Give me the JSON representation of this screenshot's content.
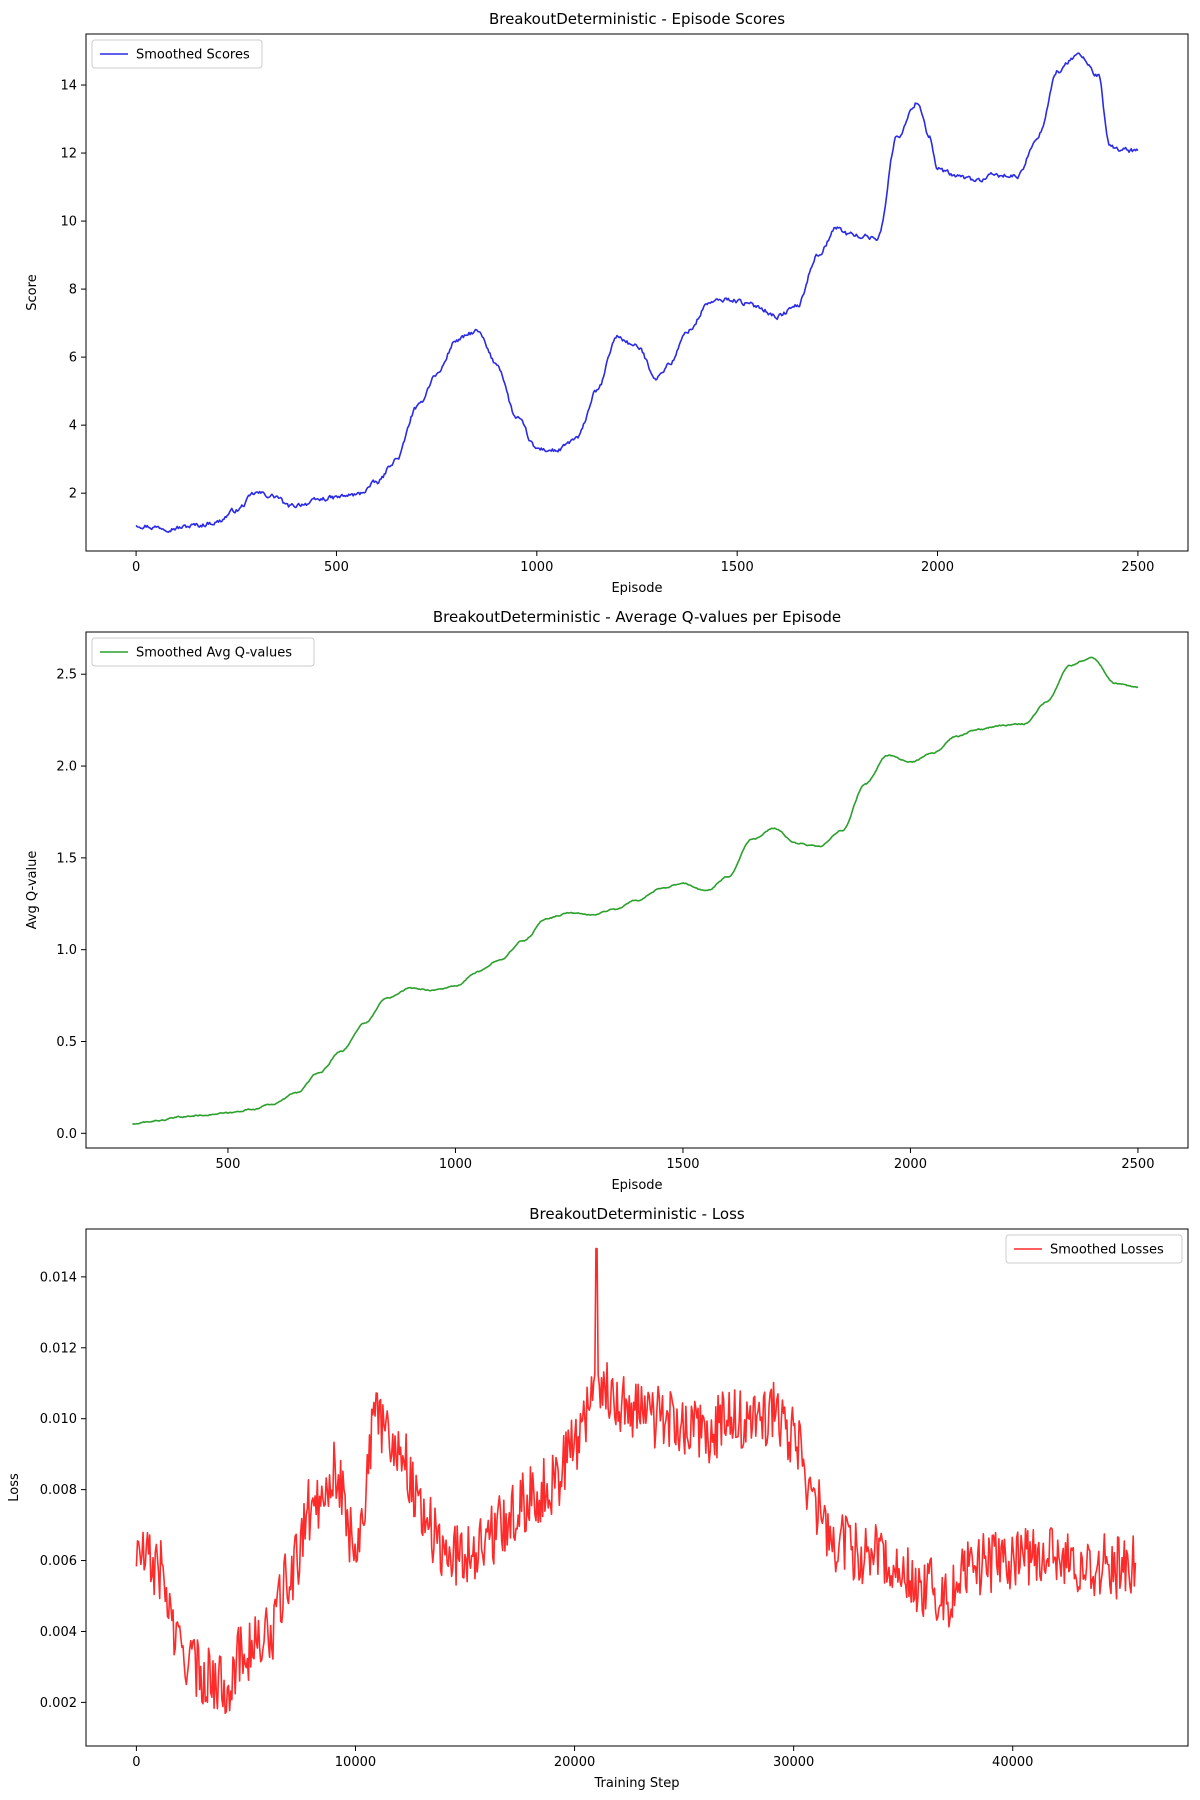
{
  "chart_data": [
    {
      "type": "line",
      "title": "BreakoutDeterministic - Episode Scores",
      "xlabel": "Episode",
      "ylabel": "Score",
      "xlim": [
        -125,
        2625
      ],
      "ylim": [
        0.3,
        15.5
      ],
      "xticks": [
        0,
        500,
        1000,
        1500,
        2000,
        2500
      ],
      "yticks": [
        2,
        4,
        6,
        8,
        10,
        12,
        14
      ],
      "grid": false,
      "legend_position": "top-left",
      "series": [
        {
          "name": "Smoothed Scores",
          "color": "#2b2be6",
          "noise": 0.12,
          "x": [
            0,
            50,
            100,
            150,
            200,
            250,
            300,
            350,
            380,
            420,
            480,
            550,
            600,
            650,
            700,
            750,
            800,
            850,
            900,
            950,
            1000,
            1050,
            1100,
            1150,
            1200,
            1250,
            1300,
            1330,
            1380,
            1430,
            1480,
            1550,
            1600,
            1650,
            1700,
            1750,
            1780,
            1850,
            1900,
            1950,
            1980,
            2000,
            2050,
            2100,
            2150,
            2200,
            2250,
            2300,
            2350,
            2400,
            2430,
            2460,
            2500
          ],
          "y": [
            1.08,
            1.0,
            0.98,
            1.05,
            1.15,
            1.5,
            2.0,
            1.9,
            1.6,
            1.7,
            1.85,
            1.95,
            2.3,
            3.0,
            4.5,
            5.5,
            6.5,
            6.75,
            5.8,
            4.2,
            3.3,
            3.25,
            3.6,
            5.0,
            6.6,
            6.3,
            5.4,
            5.8,
            6.8,
            7.6,
            7.7,
            7.5,
            7.2,
            7.5,
            9.0,
            9.8,
            9.6,
            9.5,
            12.5,
            13.5,
            12.5,
            11.5,
            11.3,
            11.2,
            11.35,
            11.3,
            12.5,
            14.4,
            14.9,
            14.3,
            12.2,
            12.1,
            12.05
          ]
        }
      ]
    },
    {
      "type": "line",
      "title": "BreakoutDeterministic - Average Q-values per Episode",
      "xlabel": "Episode",
      "ylabel": "Avg Q-value",
      "xlim": [
        188,
        2610
      ],
      "ylim": [
        -0.08,
        2.73
      ],
      "xticks": [
        500,
        1000,
        1500,
        2000,
        2500
      ],
      "yticks": [
        0.0,
        0.5,
        1.0,
        1.5,
        2.0,
        2.5
      ],
      "grid": false,
      "legend_position": "top-left",
      "series": [
        {
          "name": "Smoothed Avg Q-values",
          "color": "#2ca02c",
          "noise": 0.006,
          "x": [
            290,
            350,
            400,
            450,
            500,
            550,
            600,
            650,
            700,
            750,
            800,
            850,
            900,
            950,
            1000,
            1050,
            1100,
            1150,
            1200,
            1250,
            1300,
            1350,
            1400,
            1450,
            1500,
            1550,
            1600,
            1650,
            1700,
            1750,
            1800,
            1850,
            1900,
            1950,
            2000,
            2050,
            2100,
            2150,
            2200,
            2250,
            2300,
            2350,
            2400,
            2450,
            2500
          ],
          "y": [
            0.05,
            0.07,
            0.09,
            0.1,
            0.11,
            0.13,
            0.16,
            0.22,
            0.33,
            0.45,
            0.6,
            0.74,
            0.79,
            0.78,
            0.8,
            0.88,
            0.95,
            1.05,
            1.17,
            1.2,
            1.19,
            1.22,
            1.27,
            1.33,
            1.36,
            1.32,
            1.4,
            1.6,
            1.66,
            1.58,
            1.56,
            1.65,
            1.9,
            2.06,
            2.02,
            2.07,
            2.16,
            2.2,
            2.22,
            2.23,
            2.35,
            2.55,
            2.59,
            2.45,
            2.43
          ]
        }
      ]
    },
    {
      "type": "line",
      "title": "BreakoutDeterministic - Loss",
      "xlabel": "Training Step",
      "ylabel": "Loss",
      "xlim": [
        -2300,
        48000
      ],
      "ylim": [
        0.00077,
        0.01535
      ],
      "xticks": [
        0,
        10000,
        20000,
        30000,
        40000
      ],
      "yticks": [
        0.002,
        0.004,
        0.006,
        0.008,
        0.01,
        0.012,
        0.014
      ],
      "grid": false,
      "legend_position": "top-right",
      "series": [
        {
          "name": "Smoothed Losses",
          "color": "#ff2a2a",
          "noise": 0.0009,
          "x": [
            0,
            1000,
            2000,
            3000,
            4000,
            5000,
            6000,
            7000,
            8000,
            9000,
            10000,
            11000,
            12000,
            13000,
            14000,
            15000,
            16000,
            17000,
            18000,
            19000,
            20000,
            21000,
            22000,
            23000,
            24000,
            25000,
            26000,
            27000,
            28000,
            29000,
            30000,
            31000,
            32000,
            33000,
            34000,
            35000,
            36000,
            37000,
            38000,
            39000,
            40000,
            41000,
            42000,
            43000,
            44000,
            45000,
            45600
          ],
          "y": [
            0.0062,
            0.0058,
            0.0035,
            0.0028,
            0.0025,
            0.0035,
            0.0038,
            0.0055,
            0.0075,
            0.0085,
            0.0065,
            0.01,
            0.0092,
            0.0075,
            0.0062,
            0.0062,
            0.0066,
            0.0072,
            0.0078,
            0.0082,
            0.0093,
            0.011,
            0.0105,
            0.0102,
            0.01,
            0.0098,
            0.0095,
            0.01,
            0.0098,
            0.0102,
            0.0095,
            0.0075,
            0.0065,
            0.0062,
            0.0062,
            0.0056,
            0.0053,
            0.005,
            0.0058,
            0.006,
            0.0061,
            0.0062,
            0.006,
            0.0058,
            0.0059,
            0.0058,
            0.006
          ],
          "spike": {
            "x": 21000,
            "y": 0.0148
          }
        }
      ]
    }
  ]
}
